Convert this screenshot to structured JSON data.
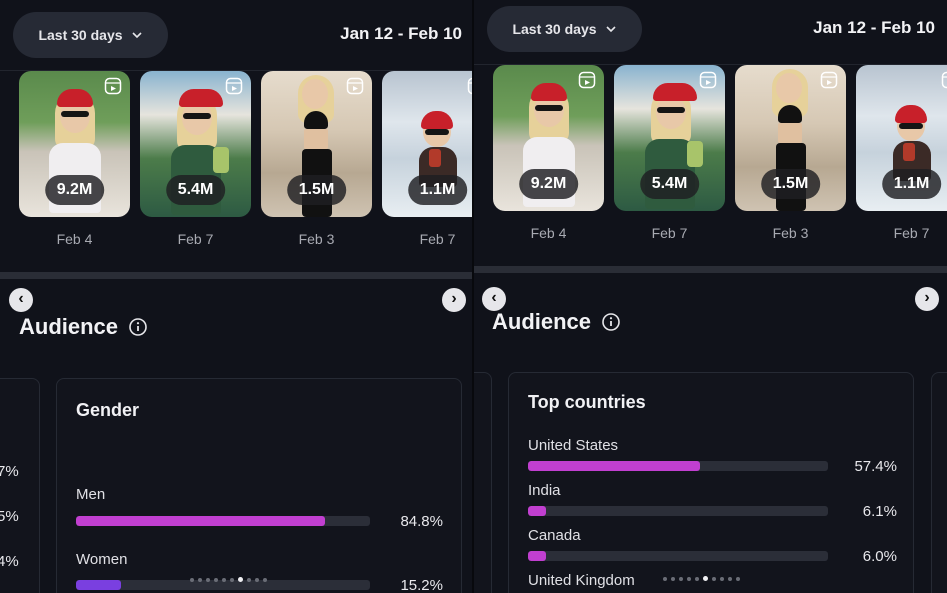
{
  "left": {
    "filter_label": "Last 30 days",
    "date_range": "Jan 12 - Feb 10",
    "reels": [
      {
        "views": "9.2M",
        "date": "Feb 4"
      },
      {
        "views": "5.4M",
        "date": "Feb 7"
      },
      {
        "views": "1.5M",
        "date": "Feb 3"
      },
      {
        "views": "1.1M",
        "date": "Feb 7"
      }
    ],
    "audience_title": "Audience",
    "edge_values": [
      "7%",
      "5%",
      "4%"
    ],
    "card": {
      "title": "Gender",
      "rows": [
        {
          "label": "Men",
          "value": "84.8%",
          "fraction": 0.848,
          "color": "#c13fd0"
        },
        {
          "label": "Women",
          "value": "15.2%",
          "fraction": 0.152,
          "color": "#7a3fe0"
        }
      ]
    },
    "pager": {
      "count": 10,
      "active": 6
    }
  },
  "right": {
    "filter_label": "Last 30 days",
    "date_range": "Jan 12 - Feb 10",
    "reels": [
      {
        "views": "9.2M",
        "date": "Feb 4"
      },
      {
        "views": "5.4M",
        "date": "Feb 7"
      },
      {
        "views": "1.5M",
        "date": "Feb 3"
      },
      {
        "views": "1.1M",
        "date": "Feb 7"
      }
    ],
    "audience_title": "Audience",
    "card": {
      "title": "Top countries",
      "rows": [
        {
          "label": "United States",
          "value": "57.4%",
          "fraction": 0.574,
          "color": "#c13fd0"
        },
        {
          "label": "India",
          "value": "6.1%",
          "fraction": 0.061,
          "color": "#c13fd0"
        },
        {
          "label": "Canada",
          "value": "6.0%",
          "fraction": 0.06,
          "color": "#c13fd0"
        },
        {
          "label": "United Kingdom",
          "value": "",
          "fraction": 0,
          "color": "#c13fd0"
        }
      ]
    },
    "pager": {
      "count": 10,
      "active": 5
    }
  },
  "colors": {
    "background": "#10121a",
    "accent": "#c13fd0",
    "accent_secondary": "#7a3fe0"
  }
}
